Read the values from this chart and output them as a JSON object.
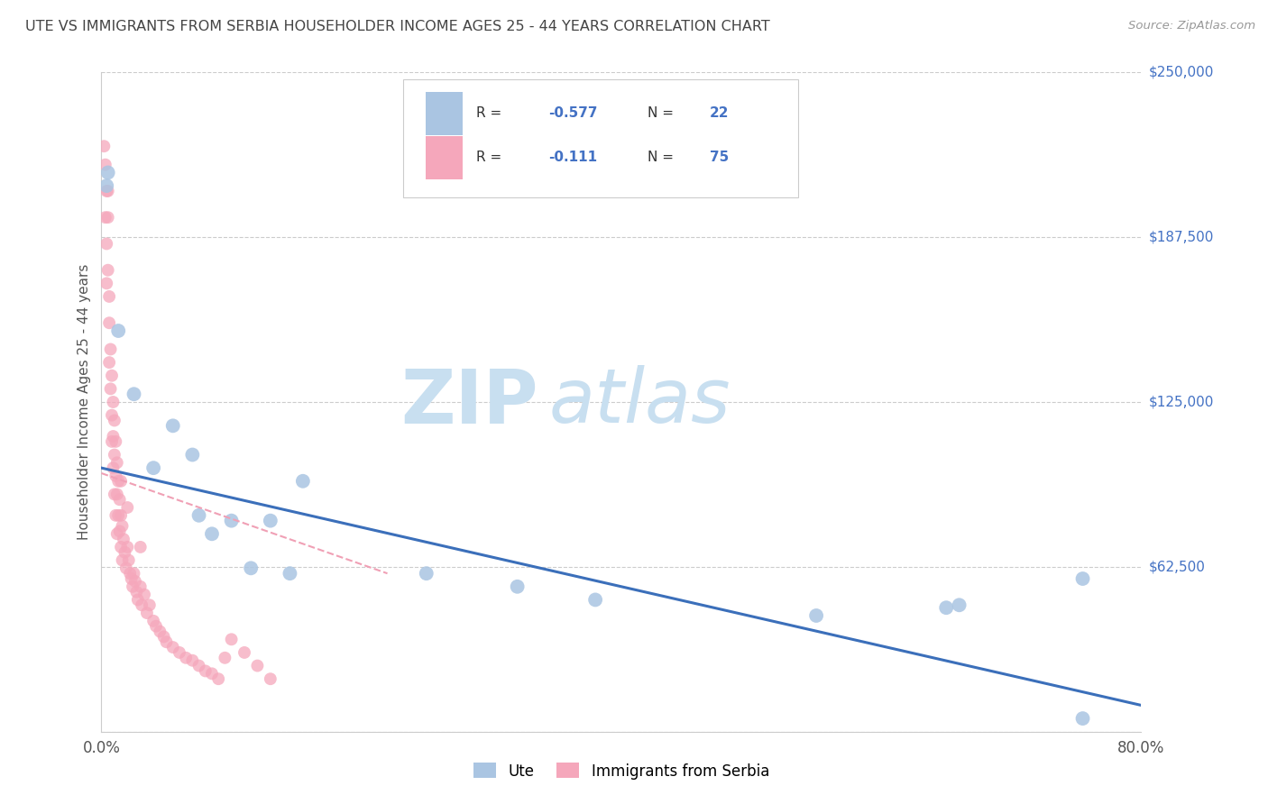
{
  "title": "UTE VS IMMIGRANTS FROM SERBIA HOUSEHOLDER INCOME AGES 25 - 44 YEARS CORRELATION CHART",
  "source": "Source: ZipAtlas.com",
  "ylabel": "Householder Income Ages 25 - 44 years",
  "xlim": [
    0.0,
    0.8
  ],
  "ylim": [
    0,
    250000
  ],
  "yticks": [
    0,
    62500,
    125000,
    187500,
    250000
  ],
  "ytick_labels": [
    "",
    "$62,500",
    "$125,000",
    "$187,500",
    "$250,000"
  ],
  "xtick_positions": [
    0.0,
    0.1,
    0.2,
    0.3,
    0.4,
    0.5,
    0.6,
    0.7,
    0.8
  ],
  "xtick_labels": [
    "0.0%",
    "",
    "",
    "",
    "",
    "",
    "",
    "",
    "80.0%"
  ],
  "color_ute": "#aac5e2",
  "color_serbia": "#f5a7bb",
  "color_ute_line": "#3b6fba",
  "color_serbia_line": "#f0a0b5",
  "watermark_zip": "ZIP",
  "watermark_atlas": "atlas",
  "ute_scatter_x": [
    0.004,
    0.005,
    0.013,
    0.025,
    0.04,
    0.055,
    0.07,
    0.075,
    0.085,
    0.1,
    0.115,
    0.13,
    0.145,
    0.155,
    0.25,
    0.32,
    0.38,
    0.55,
    0.65,
    0.755,
    0.755,
    0.66
  ],
  "ute_scatter_y": [
    207000,
    212000,
    152000,
    128000,
    100000,
    116000,
    105000,
    82000,
    75000,
    80000,
    62000,
    80000,
    60000,
    95000,
    60000,
    55000,
    50000,
    44000,
    47000,
    58000,
    5000,
    48000
  ],
  "serbia_scatter_x": [
    0.002,
    0.003,
    0.003,
    0.004,
    0.004,
    0.004,
    0.005,
    0.005,
    0.005,
    0.006,
    0.006,
    0.006,
    0.007,
    0.007,
    0.008,
    0.008,
    0.008,
    0.009,
    0.009,
    0.009,
    0.01,
    0.01,
    0.01,
    0.011,
    0.011,
    0.011,
    0.012,
    0.012,
    0.012,
    0.013,
    0.013,
    0.014,
    0.014,
    0.015,
    0.015,
    0.016,
    0.016,
    0.017,
    0.018,
    0.019,
    0.02,
    0.021,
    0.022,
    0.023,
    0.024,
    0.025,
    0.026,
    0.027,
    0.028,
    0.03,
    0.031,
    0.033,
    0.035,
    0.037,
    0.04,
    0.042,
    0.045,
    0.048,
    0.05,
    0.055,
    0.06,
    0.065,
    0.07,
    0.075,
    0.08,
    0.085,
    0.09,
    0.095,
    0.1,
    0.11,
    0.12,
    0.13,
    0.015,
    0.02,
    0.03
  ],
  "serbia_scatter_y": [
    222000,
    215000,
    195000,
    205000,
    185000,
    170000,
    205000,
    195000,
    175000,
    165000,
    155000,
    140000,
    145000,
    130000,
    135000,
    120000,
    110000,
    125000,
    112000,
    100000,
    118000,
    105000,
    90000,
    110000,
    97000,
    82000,
    102000,
    90000,
    75000,
    95000,
    82000,
    88000,
    76000,
    82000,
    70000,
    78000,
    65000,
    73000,
    68000,
    62000,
    70000,
    65000,
    60000,
    58000,
    55000,
    60000,
    57000,
    53000,
    50000,
    55000,
    48000,
    52000,
    45000,
    48000,
    42000,
    40000,
    38000,
    36000,
    34000,
    32000,
    30000,
    28000,
    27000,
    25000,
    23000,
    22000,
    20000,
    28000,
    35000,
    30000,
    25000,
    20000,
    95000,
    85000,
    70000
  ],
  "ute_trend_x": [
    0.0,
    0.8
  ],
  "ute_trend_y": [
    100000,
    10000
  ],
  "serbia_trend_x": [
    0.0,
    0.22
  ],
  "serbia_trend_y": [
    98000,
    60000
  ]
}
